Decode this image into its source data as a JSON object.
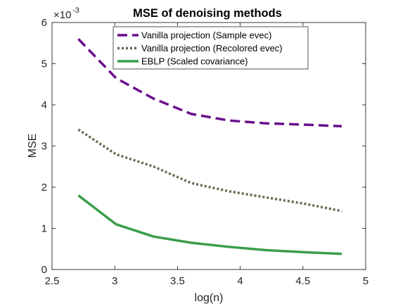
{
  "chart_data": {
    "type": "line",
    "title": "MSE of denoising methods",
    "xlabel": "log(n)",
    "ylabel": "MSE",
    "y_exponent_base": "10",
    "y_exponent_power": "-3",
    "xlim": [
      2.5,
      5
    ],
    "ylim": [
      0,
      0.006
    ],
    "xticks": [
      2.5,
      3,
      3.5,
      4,
      4.5,
      5
    ],
    "xtick_labels": [
      "2.5",
      "3",
      "3.5",
      "4",
      "4.5",
      "5"
    ],
    "yticks": [
      0,
      0.001,
      0.002,
      0.003,
      0.004,
      0.005,
      0.006
    ],
    "ytick_labels": [
      "0",
      "1",
      "2",
      "3",
      "4",
      "5",
      "6"
    ],
    "grid": false,
    "legend_position": "top-center",
    "x": [
      2.71,
      3.01,
      3.31,
      3.61,
      3.91,
      4.21,
      4.51,
      4.81
    ],
    "series": [
      {
        "name": "Vanilla projection (Sample evec)",
        "color": "#6a0f8e",
        "style": "dashed",
        "values": [
          0.0056,
          0.00465,
          0.00415,
          0.00378,
          0.00362,
          0.00355,
          0.00352,
          0.00348
        ]
      },
      {
        "name": "Vanilla projection (Recolored evec)",
        "color": "#656950",
        "style": "dotted",
        "values": [
          0.0034,
          0.0028,
          0.0025,
          0.0021,
          0.0019,
          0.00175,
          0.0016,
          0.00142
        ]
      },
      {
        "name": "EBLP (Scaled covariance)",
        "color": "#3a9e4a",
        "style": "solid",
        "values": [
          0.0018,
          0.0011,
          0.0008,
          0.00065,
          0.00055,
          0.00047,
          0.00042,
          0.00038
        ]
      }
    ]
  }
}
